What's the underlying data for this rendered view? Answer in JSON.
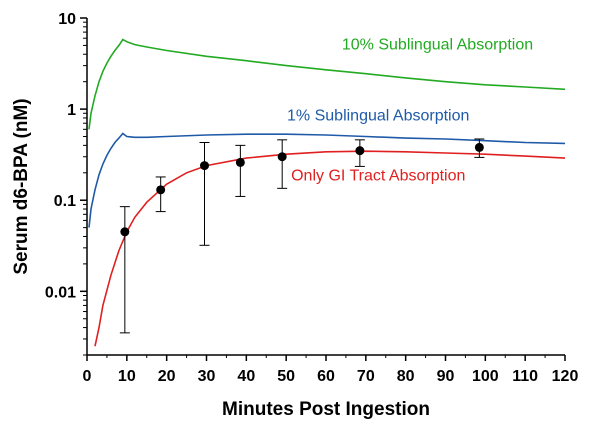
{
  "chart_data": {
    "type": "line",
    "xlabel": "Minutes Post Ingestion",
    "ylabel": "Serum d6-BPA (nM)",
    "xlim": [
      0,
      120
    ],
    "ylim": [
      0.002,
      10
    ],
    "yscale": "log",
    "grid": false,
    "x_ticks": [
      0,
      10,
      20,
      30,
      40,
      50,
      60,
      70,
      80,
      90,
      100,
      110,
      120
    ],
    "x_tick_labels": [
      "0",
      "10",
      "20",
      "30",
      "40",
      "50",
      "60",
      "70",
      "80",
      "90",
      "100",
      "110",
      "120"
    ],
    "y_ticks": [
      0.01,
      0.1,
      1,
      10
    ],
    "y_tick_labels": [
      "0.01",
      "0.1",
      "1",
      "10"
    ],
    "series": [
      {
        "name": "10% Sublingual Absorption",
        "color": "#22aa22",
        "x": [
          0.5,
          1,
          2,
          3,
          4,
          5,
          6,
          7,
          8,
          9,
          10,
          12,
          15,
          20,
          30,
          40,
          50,
          60,
          70,
          80,
          90,
          100,
          110,
          120
        ],
        "y": [
          0.6,
          0.9,
          1.4,
          2.0,
          2.6,
          3.2,
          3.8,
          4.4,
          5.0,
          5.8,
          5.5,
          5.1,
          4.8,
          4.4,
          3.8,
          3.4,
          3.0,
          2.7,
          2.45,
          2.2,
          2.0,
          1.85,
          1.75,
          1.65
        ]
      },
      {
        "name": "1% Sublingual Absorption",
        "color": "#1f5aa8",
        "x": [
          0.5,
          1,
          2,
          3,
          4,
          5,
          6,
          7,
          8,
          9,
          10,
          12,
          15,
          20,
          30,
          40,
          50,
          60,
          70,
          80,
          90,
          100,
          110,
          120
        ],
        "y": [
          0.05,
          0.08,
          0.13,
          0.19,
          0.25,
          0.31,
          0.37,
          0.43,
          0.48,
          0.54,
          0.5,
          0.49,
          0.49,
          0.5,
          0.52,
          0.53,
          0.53,
          0.52,
          0.5,
          0.48,
          0.47,
          0.45,
          0.43,
          0.42
        ]
      },
      {
        "name": "Only GI Tract Absorption",
        "color": "#e02020",
        "x": [
          2,
          3,
          4,
          6,
          8,
          10,
          12,
          15,
          20,
          25,
          30,
          40,
          50,
          60,
          70,
          80,
          90,
          100,
          110,
          120
        ],
        "y": [
          0.0025,
          0.004,
          0.007,
          0.015,
          0.028,
          0.045,
          0.065,
          0.095,
          0.15,
          0.2,
          0.24,
          0.29,
          0.32,
          0.34,
          0.345,
          0.34,
          0.33,
          0.32,
          0.305,
          0.29
        ]
      }
    ],
    "observed": {
      "x": [
        9.5,
        18.5,
        29.5,
        38.5,
        49,
        68.5,
        98.5
      ],
      "y": [
        0.045,
        0.13,
        0.24,
        0.26,
        0.3,
        0.35,
        0.38
      ],
      "y_lower": [
        0.0035,
        0.075,
        0.032,
        0.11,
        0.135,
        0.235,
        0.295
      ],
      "y_upper": [
        0.085,
        0.18,
        0.43,
        0.4,
        0.46,
        0.46,
        0.47
      ]
    }
  }
}
